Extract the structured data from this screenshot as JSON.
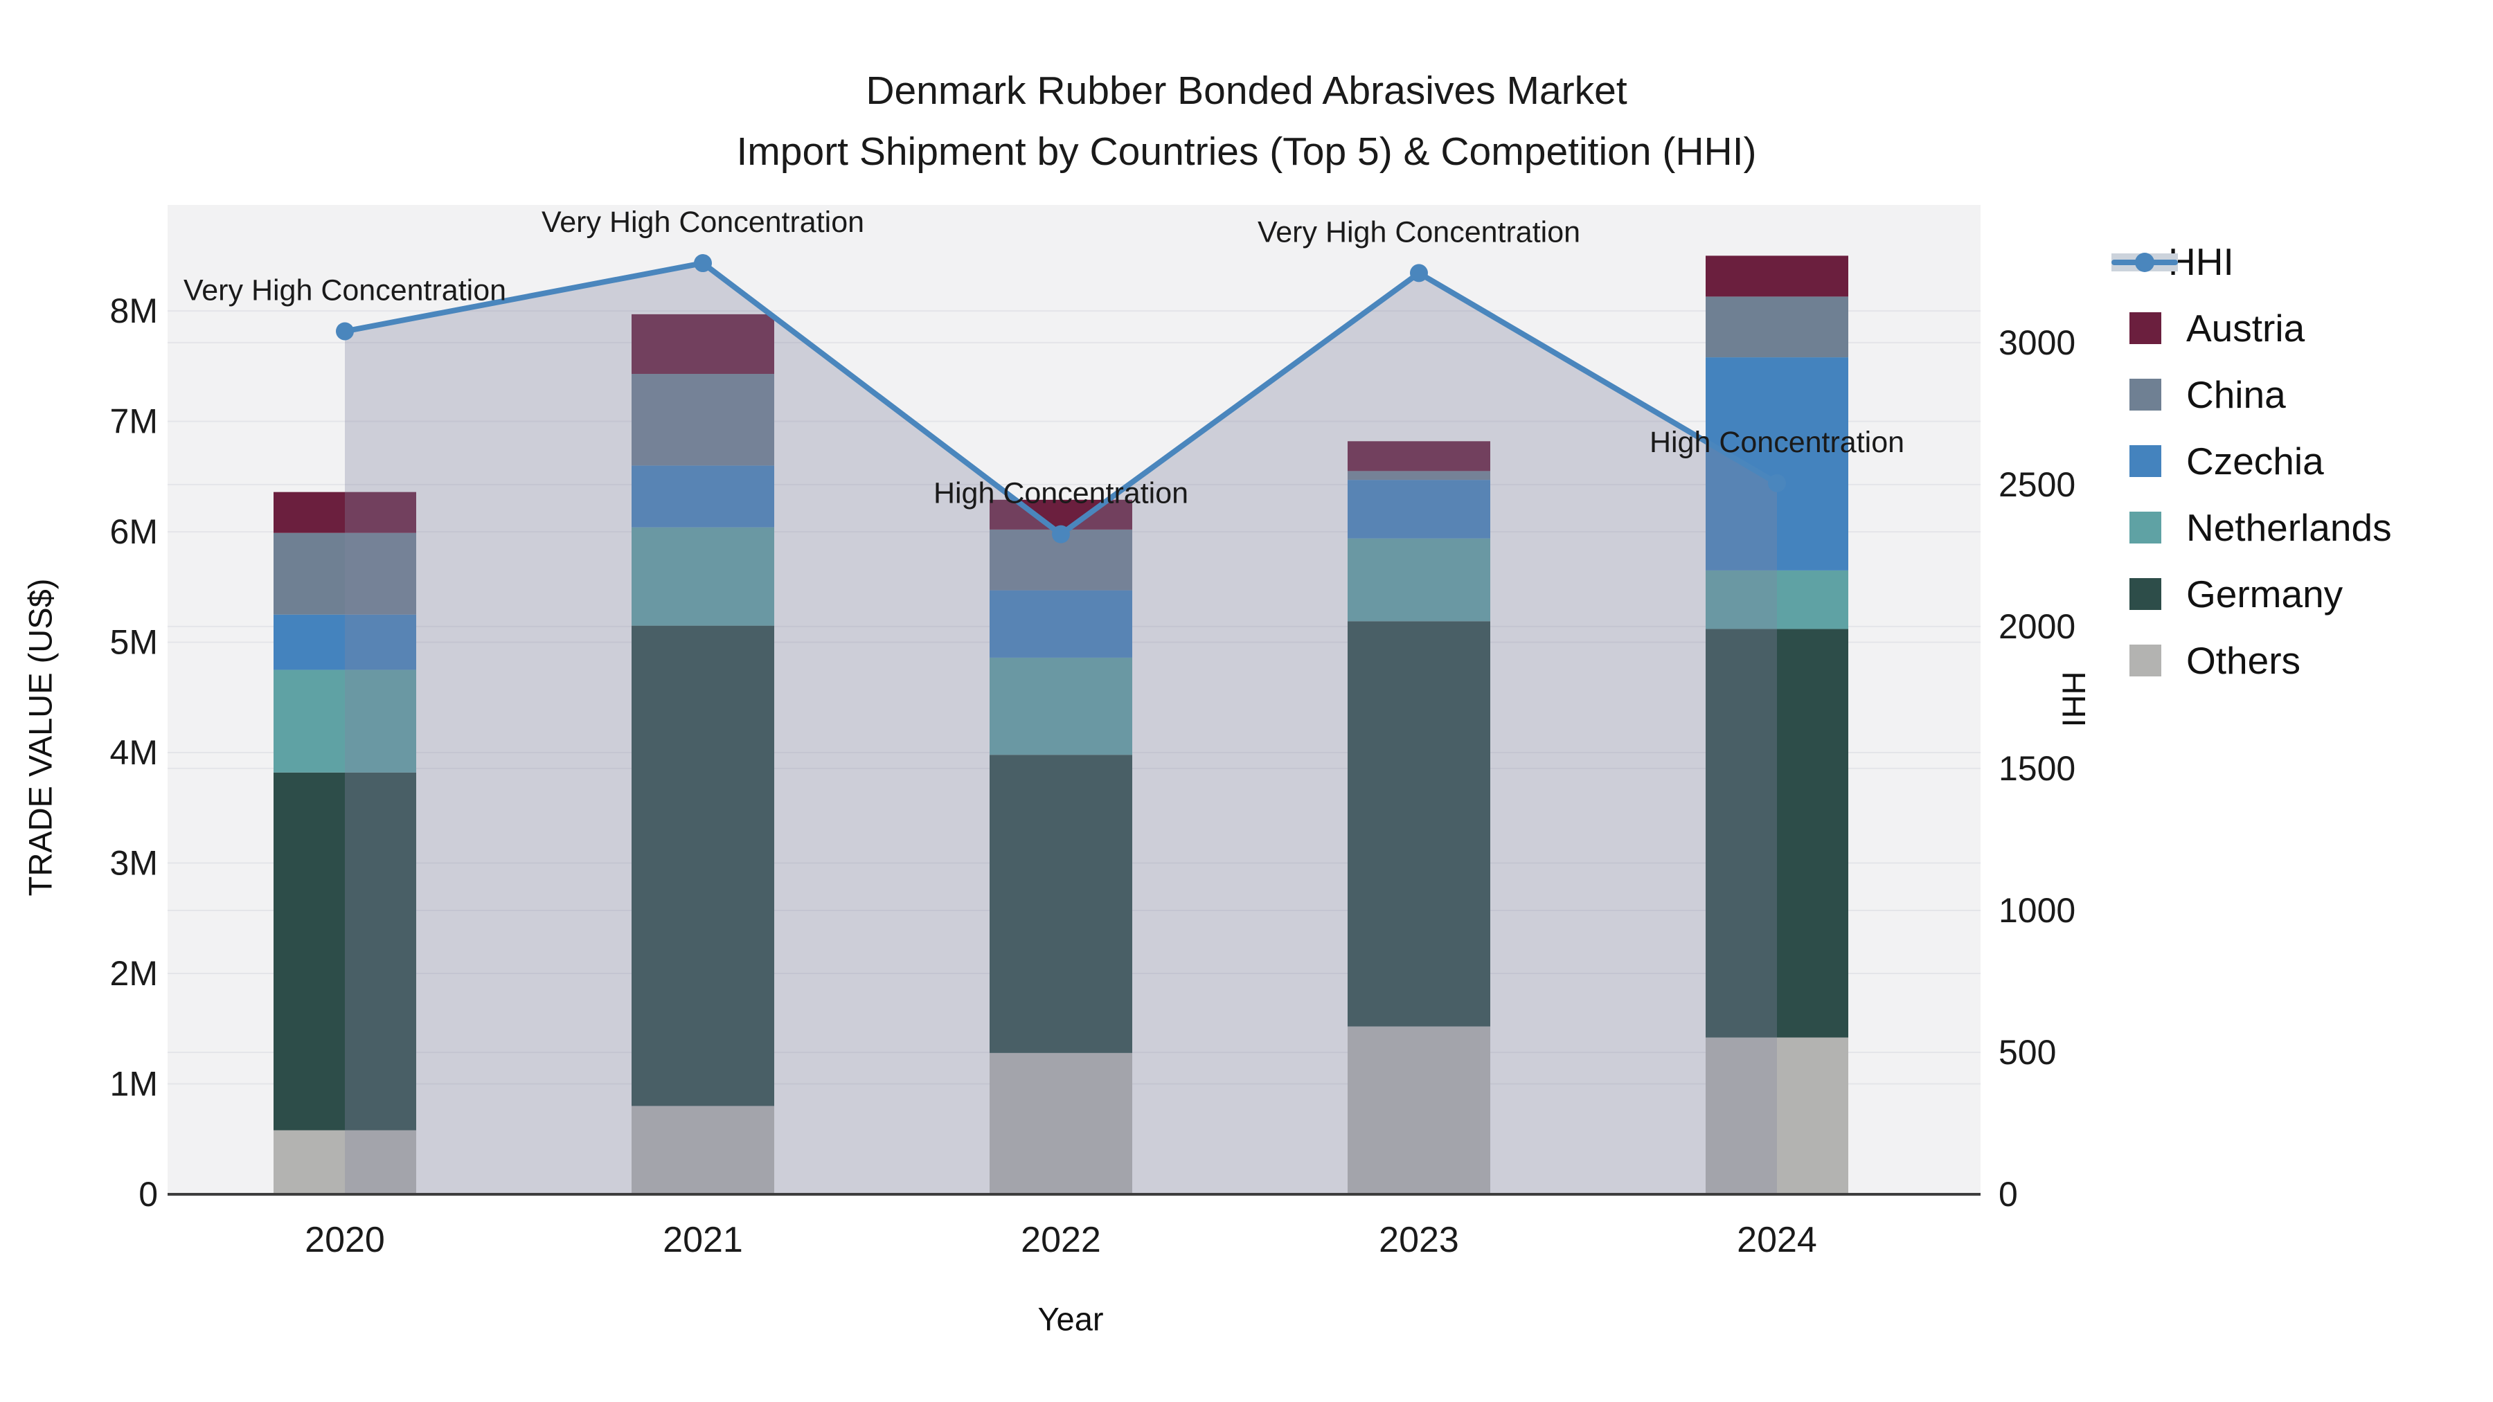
{
  "title": {
    "line1": "Denmark Rubber Bonded Abrasives Market",
    "line2": "Import Shipment by Countries (Top 5) & Competition (HHI)"
  },
  "chart_data": {
    "type": "stacked-bar+line",
    "categories": [
      "2020",
      "2021",
      "2022",
      "2023",
      "2024"
    ],
    "value_unit": "million US$",
    "series": [
      {
        "name": "Others",
        "color": "#b3b3b1",
        "values": [
          0.58,
          0.8,
          1.28,
          1.52,
          1.42
        ]
      },
      {
        "name": "Germany",
        "color": "#2d4d49",
        "values": [
          3.24,
          4.35,
          2.7,
          3.67,
          3.7
        ]
      },
      {
        "name": "Netherlands",
        "color": "#5fa2a4",
        "values": [
          0.93,
          0.89,
          0.88,
          0.75,
          0.53
        ]
      },
      {
        "name": "Czechia",
        "color": "#4483be",
        "values": [
          0.5,
          0.56,
          0.61,
          0.53,
          1.93
        ]
      },
      {
        "name": "China",
        "color": "#6f8093",
        "values": [
          0.74,
          0.83,
          0.55,
          0.08,
          0.55
        ]
      },
      {
        "name": "Austria",
        "color": "#6b1f3e",
        "values": [
          0.37,
          0.54,
          0.27,
          0.27,
          0.37
        ]
      }
    ],
    "bar_totals": [
      6.36,
      7.97,
      6.29,
      6.82,
      8.5
    ],
    "line_series": {
      "name": "HHI",
      "color": "#4a86bd",
      "area_fill": "rgba(130,135,161,0.33)",
      "values": [
        3040,
        3280,
        2325,
        3245,
        2505
      ]
    },
    "annotations": [
      "Very High Concentration",
      "Very High Concentration",
      "High Concentration",
      "Very High Concentration",
      "High Concentration"
    ],
    "xlabel": "Year",
    "ylabel_left": "TRADE VALUE (US$)",
    "ylabel_right": "HHI",
    "yticks_left": [
      "0",
      "1M",
      "2M",
      "3M",
      "4M",
      "5M",
      "6M",
      "7M",
      "8M"
    ],
    "yticks_left_values": [
      0,
      1,
      2,
      3,
      4,
      5,
      6,
      7,
      8
    ],
    "yticks_right": [
      "0",
      "500",
      "1000",
      "1500",
      "2000",
      "2500",
      "3000"
    ],
    "yticks_right_values": [
      0,
      500,
      1000,
      1500,
      2000,
      2500,
      3000
    ],
    "ylim_left": [
      0,
      8.96
    ],
    "ylim_right": [
      0,
      3485
    ],
    "grid": true,
    "legend_position": "right"
  },
  "legend": {
    "items": [
      {
        "label": "HHI",
        "type": "line",
        "color": "#4a86bd"
      },
      {
        "label": "Austria",
        "type": "patch",
        "color": "#6b1f3e"
      },
      {
        "label": "China",
        "type": "patch",
        "color": "#6f8093"
      },
      {
        "label": "Czechia",
        "type": "patch",
        "color": "#4483be"
      },
      {
        "label": "Netherlands",
        "type": "patch",
        "color": "#5fa2a4"
      },
      {
        "label": "Germany",
        "type": "patch",
        "color": "#2d4d49"
      },
      {
        "label": "Others",
        "type": "patch",
        "color": "#b3b3b1"
      }
    ]
  },
  "style": {
    "plot_bg": "#f2f2f3",
    "grid_color": "#e4e5e9",
    "axis_line_color": "#3d3d3d",
    "text_color": "#1a1a1a"
  }
}
